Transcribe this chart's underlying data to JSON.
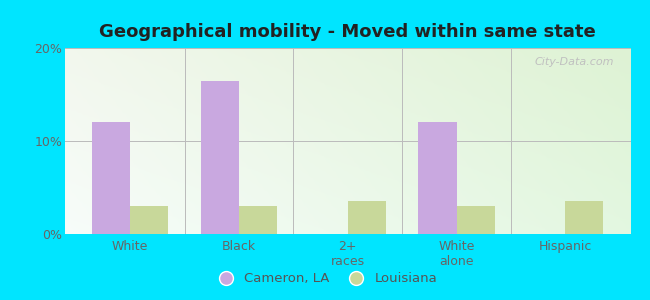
{
  "title": "Geographical mobility - Moved within same state",
  "categories": [
    "White",
    "Black",
    "2+\nraces",
    "White\nalone",
    "Hispanic"
  ],
  "cameron_values": [
    12.0,
    16.5,
    0,
    12.0,
    0
  ],
  "louisiana_values": [
    3.0,
    3.0,
    3.5,
    3.0,
    3.5
  ],
  "cameron_color": "#c9a8e0",
  "louisiana_color": "#c8d89a",
  "ylim": [
    0,
    20
  ],
  "yticks": [
    0,
    10,
    20
  ],
  "ytick_labels": [
    "0%",
    "10%",
    "20%"
  ],
  "bar_width": 0.35,
  "outer_bg": "#00e5ff",
  "legend_labels": [
    "Cameron, LA",
    "Louisiana"
  ],
  "title_fontsize": 13,
  "tick_fontsize": 9,
  "watermark": "City-Data.com"
}
